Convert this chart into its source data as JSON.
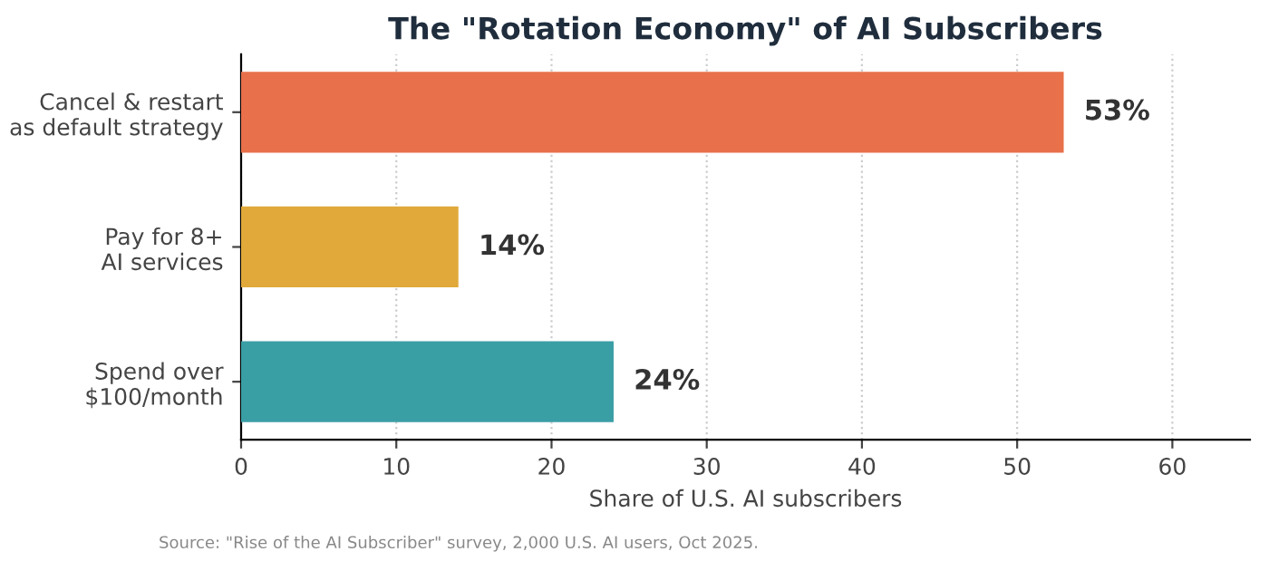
{
  "chart_data": {
    "type": "bar",
    "orientation": "horizontal",
    "title": "The \"Rotation Economy\" of AI Subscribers",
    "categories": [
      "Cancel & restart\nas default strategy",
      "Pay for 8+\nAI services",
      "Spend over\n$100/month"
    ],
    "values": [
      53,
      14,
      24
    ],
    "colors": [
      "#e8704a",
      "#e0a93a",
      "#3a9ea5"
    ],
    "value_labels": [
      "53%",
      "14%",
      "24%"
    ],
    "xlabel": "Share of U.S. AI subscribers",
    "xlim": [
      0,
      65
    ],
    "xticks": [
      0,
      10,
      20,
      30,
      40,
      50,
      60
    ],
    "grid": "x",
    "annotations": [
      "Source: \"Rise of the AI Subscriber\" survey, 2,000 U.S. AI users, Oct 2025."
    ]
  }
}
